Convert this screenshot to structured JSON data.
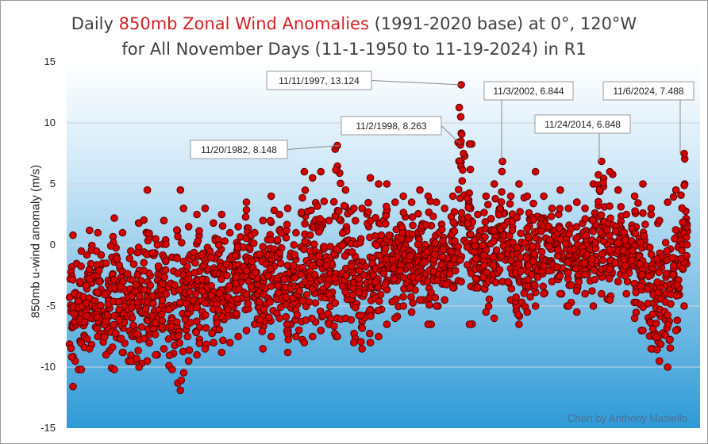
{
  "title_line1": {
    "pre": "Daily ",
    "highlight": "850mb Zonal Wind Anomalies",
    "post": " (1991-2020 base) at 0°, 120°W"
  },
  "title_line2": "for All November Days (11-1-1950 to 11-19-2024) in R1",
  "credit": "Chart by Anthony Masiello",
  "colors": {
    "marker_fill": "#d40000",
    "marker_stroke": "#5a0000",
    "title_highlight": "#d32020",
    "plot_top": "#ffffff",
    "plot_bottom": "#2e9ad6"
  },
  "chart_data": {
    "type": "scatter",
    "title": "Daily 850mb Zonal Wind Anomalies (1991-2020 base) at 0°, 120°W for All November Days (11-1-1950 to 11-19-2024) in R1",
    "xlabel": "",
    "ylabel": "850mb u-wind anomaly (m/s)",
    "x_range": [
      "11-1-1950",
      "11-19-2024"
    ],
    "ylim": [
      -15,
      15
    ],
    "yticks": [
      -15,
      -10,
      -5,
      0,
      5,
      10,
      15
    ],
    "grid": true,
    "legend": "none",
    "series": [
      {
        "x": [
          "1950-11",
          "1951-11",
          "1952-11",
          "1953-11",
          "1954-11",
          "1955-11",
          "1956-11",
          "1957-11",
          "1958-11",
          "1959-11",
          "1960-11",
          "1961-11",
          "1962-11",
          "1963-11",
          "1964-11",
          "1965-11",
          "1966-11",
          "1967-11",
          "1968-11",
          "1969-11",
          "1970-11",
          "1971-11",
          "1972-11",
          "1973-11",
          "1974-11",
          "1975-11",
          "1976-11",
          "1977-11",
          "1978-11",
          "1979-11",
          "1980-11",
          "1981-11",
          "1982-11",
          "1983-11",
          "1984-11",
          "1985-11",
          "1986-11",
          "1987-11",
          "1988-11",
          "1989-11",
          "1990-11",
          "1991-11",
          "1992-11",
          "1993-11",
          "1994-11",
          "1995-11",
          "1996-11",
          "1997-11",
          "1998-11",
          "1999-11",
          "2000-11",
          "2001-11",
          "2002-11",
          "2003-11",
          "2004-11",
          "2005-11",
          "2006-11",
          "2007-11",
          "2008-11",
          "2009-11",
          "2010-11",
          "2011-11",
          "2012-11",
          "2013-11",
          "2014-11",
          "2015-11",
          "2016-11",
          "2017-11",
          "2018-11",
          "2019-11",
          "2020-11",
          "2021-11",
          "2022-11",
          "2023-11",
          "2024-11"
        ],
        "y_max": [
          0.8,
          -0.5,
          1.2,
          1.0,
          -1.5,
          2.2,
          1.0,
          -0.5,
          1.8,
          4.5,
          0.5,
          2.0,
          -1.0,
          4.5,
          1.5,
          2.5,
          3.0,
          1.8,
          2.5,
          1.0,
          1.5,
          3.5,
          1.0,
          2.0,
          4.0,
          2.5,
          3.0,
          1.0,
          6.0,
          5.5,
          6.0,
          2.0,
          8.148,
          4.5,
          3.0,
          3.0,
          5.5,
          5.0,
          5.0,
          3.5,
          4.0,
          3.5,
          4.5,
          4.0,
          3.5,
          3.0,
          4.0,
          13.124,
          8.263,
          2.5,
          4.0,
          5.0,
          6.844,
          4.0,
          5.0,
          4.0,
          6.0,
          4.0,
          3.0,
          4.5,
          3.0,
          3.5,
          3.0,
          5.0,
          6.848,
          6.0,
          4.5,
          2.5,
          4.0,
          5.0,
          3.0,
          2.0,
          3.5,
          4.5,
          7.488
        ],
        "y_min": [
          -11.6,
          -10.2,
          -8.5,
          -7.5,
          -9.0,
          -10.2,
          -8.8,
          -9.5,
          -10.0,
          -9.5,
          -9.0,
          -8.5,
          -10.2,
          -11.9,
          -9.5,
          -9.0,
          -8.5,
          -8.0,
          -8.8,
          -8.0,
          -7.5,
          -7.0,
          -6.5,
          -8.5,
          -7.5,
          -6.0,
          -8.8,
          -7.5,
          -8.0,
          -7.5,
          -7.0,
          -6.5,
          -7.5,
          -6.0,
          -8.0,
          -8.5,
          -8.0,
          -7.5,
          -6.5,
          -6.0,
          -5.0,
          -5.5,
          -4.5,
          -6.5,
          -5.0,
          -4.5,
          -3.5,
          -3.0,
          -6.5,
          -3.5,
          -5.5,
          -6.0,
          -3.0,
          -4.5,
          -6.5,
          -5.5,
          -5.0,
          -4.0,
          -3.0,
          -4.0,
          -5.0,
          -5.5,
          -4.0,
          -5.0,
          -4.0,
          -4.5,
          -3.0,
          -4.0,
          -6.0,
          -7.0,
          -8.5,
          -9.5,
          -10.0,
          -7.0,
          -5.0
        ]
      }
    ],
    "annotations": [
      {
        "label": "11/20/1982, 8.148",
        "date": "1982-11-20",
        "value": 8.148
      },
      {
        "label": "11/11/1997, 13.124",
        "date": "1997-11-11",
        "value": 13.124
      },
      {
        "label": "11/2/1998, 8.263",
        "date": "1998-11-02",
        "value": 8.263
      },
      {
        "label": "11/3/2002, 6.844",
        "date": "2002-11-03",
        "value": 6.844
      },
      {
        "label": "11/24/2014, 6.848",
        "date": "2014-11-24",
        "value": 6.848
      },
      {
        "label": "11/6/2024, 7.488",
        "date": "2024-11-06",
        "value": 7.488
      }
    ]
  }
}
